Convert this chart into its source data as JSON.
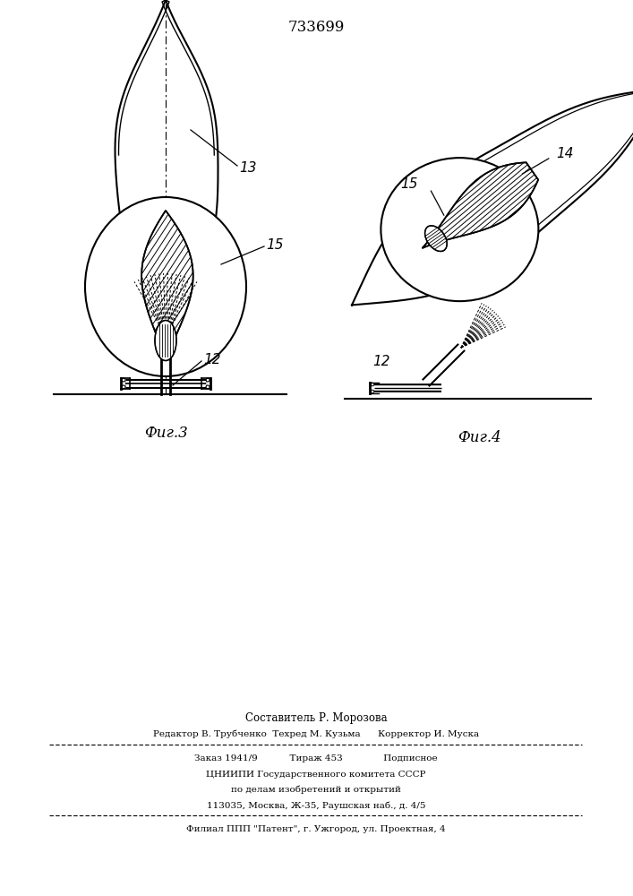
{
  "title": "733699",
  "fig3_label": "Фиг.3",
  "fig4_label": "Фиг.4",
  "label_13": "13",
  "label_14": "14",
  "label_15_left": "15",
  "label_15_right": "15",
  "label_12_left": "12",
  "label_12_right": "12",
  "footer_line1": "Составитель Р. Морозова",
  "footer_line2": "Редактор В. Трубченко  Техред М. Кузьма      Корректор И. Муска",
  "footer_line3": "Заказ 1941/9           Тираж 453              Подписное",
  "footer_line4": "ЦНИИПИ Государственного комитета СССР",
  "footer_line5": "по делам изобретений и открытий",
  "footer_line6": "113035, Москва, Ж-35, Раушская наб., д. 4/5",
  "footer_line7": "Филиал ППП \"Патент\", г. Ужгород, ул. Проектная, 4",
  "bg_color": "#ffffff",
  "line_color": "#000000"
}
